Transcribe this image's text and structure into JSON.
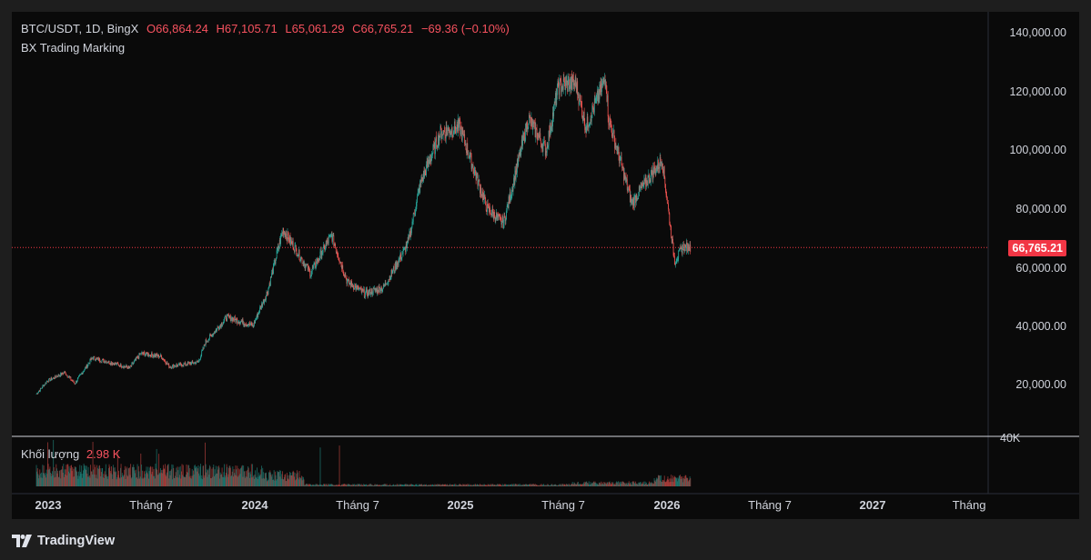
{
  "legend": {
    "symbol": "BTC/USDT, 1D, BingX",
    "open": "O66,864.24",
    "high": "H67,105.71",
    "low": "L65,061.29",
    "close": "C66,765.21",
    "change": "−69.36 (−0.10%)"
  },
  "indicator": {
    "name": "BX Trading Marking"
  },
  "volume": {
    "label": "Khối lượng",
    "value": "2.98 K",
    "axis_tick": "40K"
  },
  "price_axis": {
    "ticks": [
      "140,000.00",
      "120,000.00",
      "100,000.00",
      "80,000.00",
      "60,000.00",
      "40,000.00",
      "20,000.00"
    ],
    "current_price": "66,765.21"
  },
  "time_axis": {
    "labels": [
      {
        "text": "2023",
        "bold": true
      },
      {
        "text": "Tháng 7",
        "bold": false
      },
      {
        "text": "2024",
        "bold": true
      },
      {
        "text": "Tháng 7",
        "bold": false
      },
      {
        "text": "2025",
        "bold": true
      },
      {
        "text": "Tháng 7",
        "bold": false
      },
      {
        "text": "2026",
        "bold": true
      },
      {
        "text": "Tháng 7",
        "bold": false
      },
      {
        "text": "2027",
        "bold": true
      },
      {
        "text": "Tháng",
        "bold": false
      }
    ]
  },
  "colors": {
    "up": "#26a69a",
    "down": "#ef5350",
    "price_line": "#f23645"
  },
  "footer": {
    "brand": "TradingView"
  },
  "chart_data": {
    "type": "candlestick",
    "x_unit": "date",
    "y_unit": "USDT",
    "ylim": [
      0,
      145000
    ],
    "anchors": [
      [
        "2023-01-01",
        16600
      ],
      [
        "2023-01-20",
        21000
      ],
      [
        "2023-02-20",
        24000
      ],
      [
        "2023-03-10",
        20200
      ],
      [
        "2023-04-10",
        29000
      ],
      [
        "2023-05-20",
        27000
      ],
      [
        "2023-06-15",
        25500
      ],
      [
        "2023-07-05",
        30500
      ],
      [
        "2023-08-10",
        29500
      ],
      [
        "2023-08-25",
        26000
      ],
      [
        "2023-10-15",
        27500
      ],
      [
        "2023-10-28",
        34500
      ],
      [
        "2023-12-05",
        43000
      ],
      [
        "2024-01-20",
        40000
      ],
      [
        "2024-02-15",
        52000
      ],
      [
        "2024-03-13",
        73000
      ],
      [
        "2024-05-01",
        58000
      ],
      [
        "2024-06-07",
        71000
      ],
      [
        "2024-07-05",
        55000
      ],
      [
        "2024-08-05",
        51000
      ],
      [
        "2024-09-07",
        53000
      ],
      [
        "2024-10-20",
        68000
      ],
      [
        "2024-11-12",
        89000
      ],
      [
        "2024-12-17",
        106000
      ],
      [
        "2025-01-20",
        108000
      ],
      [
        "2025-03-10",
        80000
      ],
      [
        "2025-04-08",
        75000
      ],
      [
        "2025-05-22",
        111000
      ],
      [
        "2025-06-22",
        100000
      ],
      [
        "2025-07-14",
        122000
      ],
      [
        "2025-08-14",
        123000
      ],
      [
        "2025-09-01",
        108000
      ],
      [
        "2025-10-06",
        125000
      ],
      [
        "2025-10-11",
        111000
      ],
      [
        "2025-11-21",
        82000
      ],
      [
        "2026-01-14",
        97000
      ],
      [
        "2026-02-05",
        62000
      ],
      [
        "2026-02-20",
        67000
      ],
      [
        "2026-03-05",
        66765
      ]
    ]
  }
}
